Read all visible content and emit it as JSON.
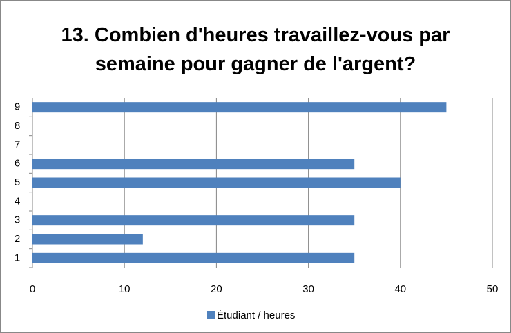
{
  "chart_data": {
    "type": "hbar",
    "title": "13. Combien d'heures travaillez-vous par semaine pour gagner de l'argent?",
    "categories": [
      "1",
      "2",
      "3",
      "4",
      "5",
      "6",
      "7",
      "8",
      "9"
    ],
    "series": [
      {
        "name": "Étudiant / heures",
        "color": "#4f81bd",
        "values": [
          35,
          12,
          35,
          null,
          40,
          35,
          null,
          null,
          45
        ]
      }
    ],
    "xlim": [
      0,
      50
    ],
    "xticks": [
      0,
      10,
      20,
      30,
      40,
      50
    ],
    "grid": true,
    "legend": "bottom"
  }
}
